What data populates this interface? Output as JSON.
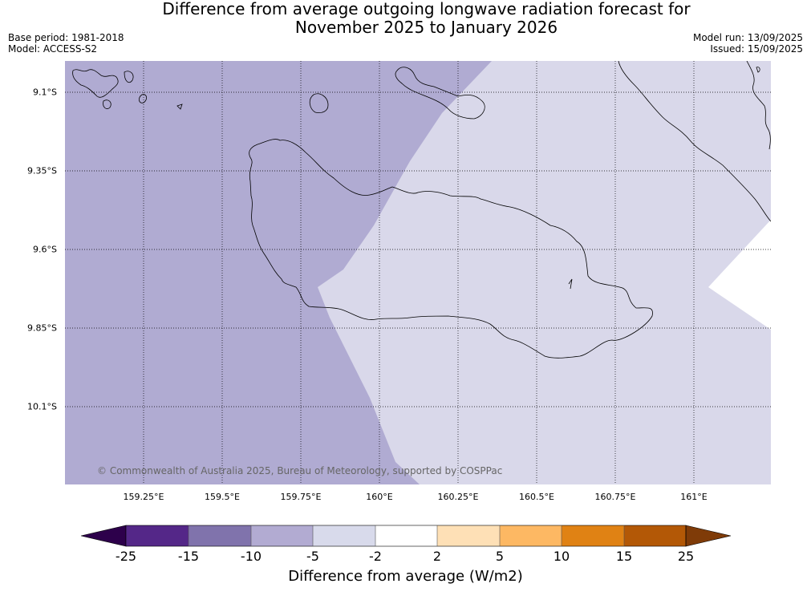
{
  "header": {
    "title_line1": "Difference from average outgoing longwave radiation forecast for",
    "title_line2": "November 2025 to January 2026",
    "base_period": "Base period: 1981-2018",
    "model": "Model: ACCESS-S2",
    "model_run": "Model run: 13/09/2025",
    "issued": "Issued: 15/09/2025"
  },
  "map": {
    "lat_labels": [
      "9.1°S",
      "9.35°S",
      "9.6°S",
      "9.85°S",
      "10.1°S"
    ],
    "lon_labels": [
      "159.25°E",
      "159.5°E",
      "159.75°E",
      "160°E",
      "160.25°E",
      "160.5°E",
      "160.75°E",
      "161°E"
    ],
    "copyright": "© Commonwealth of Australia 2025, Bureau of Meteorology, supported by COSPPac",
    "colors": {
      "mid_purple": "#b0abd2",
      "light_purple": "#d9d8ea",
      "white": "#ffffff"
    }
  },
  "legend": {
    "label": "Difference from average (W/m2)",
    "ticks": [
      "-25",
      "-15",
      "-10",
      "-5",
      "-2",
      "2",
      "5",
      "10",
      "15",
      "25"
    ],
    "colors": [
      "#2d004b",
      "#542788",
      "#8073ac",
      "#b2abd2",
      "#d8daeb",
      "#ffffff",
      "#fee0b6",
      "#fdb863",
      "#e08214",
      "#b35806",
      "#7f3b08"
    ]
  }
}
